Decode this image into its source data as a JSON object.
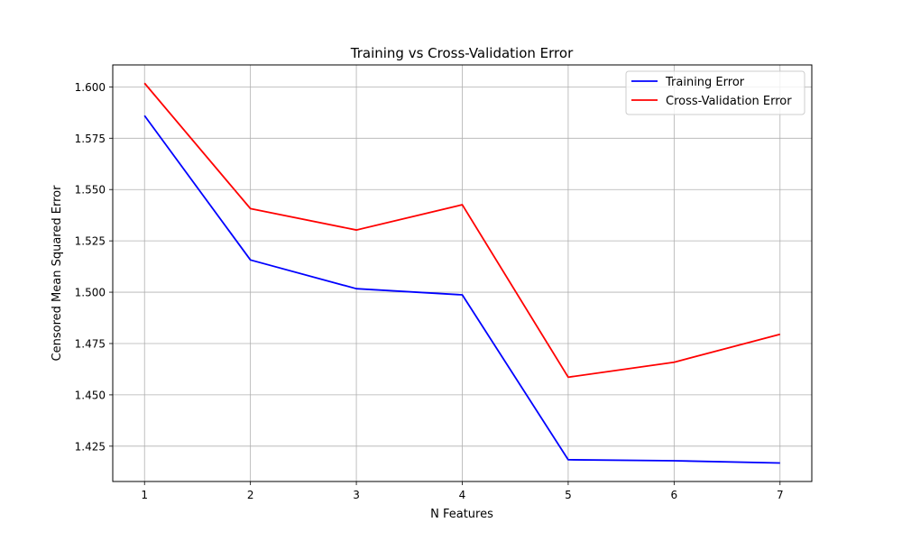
{
  "chart_data": {
    "type": "line",
    "title": "Training vs Cross-Validation Error",
    "xlabel": "N Features",
    "ylabel": "Censored Mean Squared Error",
    "x": [
      1,
      2,
      3,
      4,
      5,
      6,
      7
    ],
    "xlim": [
      0.7,
      7.3
    ],
    "ylim": [
      1.4078,
      1.6107
    ],
    "xticks": [
      "1",
      "2",
      "3",
      "4",
      "5",
      "6",
      "7"
    ],
    "yticks": [
      "1.425",
      "1.450",
      "1.475",
      "1.500",
      "1.525",
      "1.550",
      "1.575",
      "1.600"
    ],
    "grid": true,
    "legend_position": "top-right",
    "series": [
      {
        "name": "Training Error",
        "color": "#0000ff",
        "values": [
          1.586,
          1.5157,
          1.5017,
          1.4987,
          1.4184,
          1.4179,
          1.4168
        ]
      },
      {
        "name": "Cross-Validation Error",
        "color": "#ff0000",
        "values": [
          1.6018,
          1.5407,
          1.5303,
          1.5426,
          1.4586,
          1.4659,
          1.4795
        ]
      }
    ]
  }
}
